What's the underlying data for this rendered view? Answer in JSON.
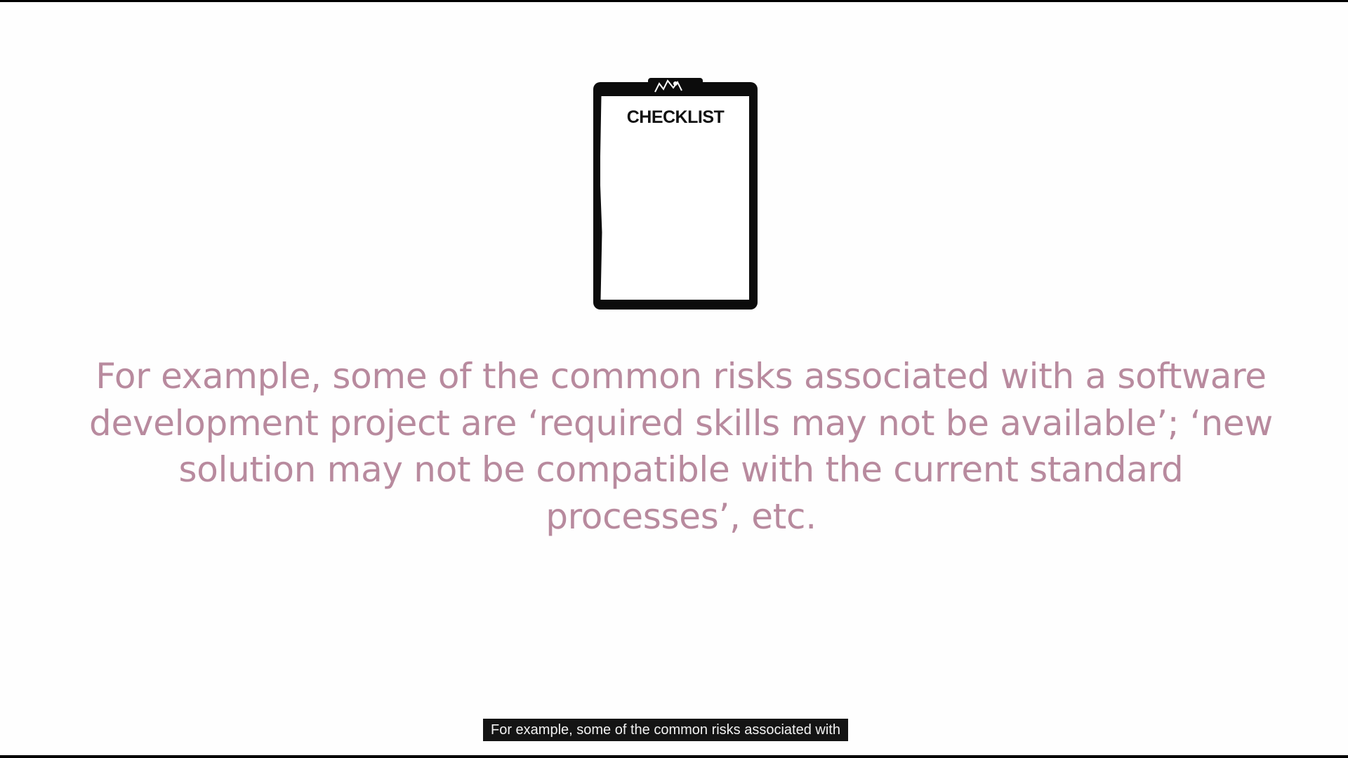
{
  "clipboard": {
    "title": "CHECKLIST",
    "icon": "clipboard-checklist-icon"
  },
  "slide": {
    "body_text": "For example, some of the common risks associated with a software development project are ‘required skills may not be available’; ‘new solution may not be compatible with the current standard processes’, etc."
  },
  "caption": {
    "text": "For example, some of the common risks associated with"
  },
  "colors": {
    "body_text": "#b88a9e",
    "background": "#fefefe",
    "caption_bg": "#141414"
  }
}
